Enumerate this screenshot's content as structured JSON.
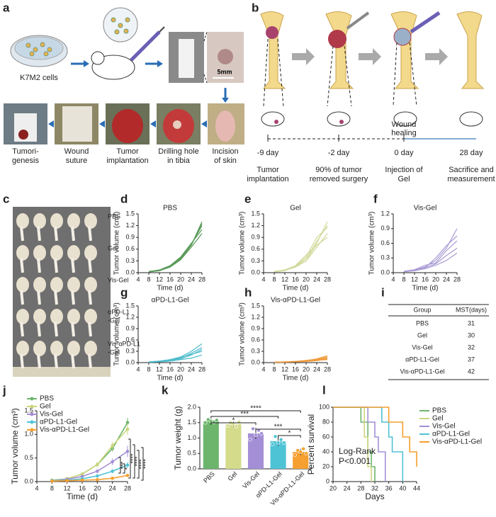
{
  "panel_labels": [
    "a",
    "b",
    "c",
    "d",
    "e",
    "f",
    "g",
    "h",
    "i",
    "j",
    "k",
    "l"
  ],
  "panel_a": {
    "cell_label": "K7M2 cells",
    "scale_bar": "5mm",
    "steps": [
      [
        "Tumori-",
        "genesis"
      ],
      [
        "Wound",
        "suture"
      ],
      [
        "Tumor",
        "implantation"
      ],
      [
        "Drilling hole",
        "in tibia"
      ],
      [
        "Incision",
        "of skin"
      ]
    ]
  },
  "panel_b": {
    "wound_healing": [
      "Wound",
      "healing"
    ],
    "days": [
      "-9 day",
      "-2 day",
      "0 day",
      "28 day"
    ],
    "steps": [
      [
        "Tumor",
        "implantation"
      ],
      [
        "90% of tumor",
        "removed surgery"
      ],
      [
        "Injection of",
        "Gel"
      ],
      [
        "Sacrifice and",
        "measurement"
      ]
    ]
  },
  "panel_c": {
    "groups": [
      [
        "PBS"
      ],
      [
        "Gel"
      ],
      [
        "Vis-Gel"
      ],
      [
        "αPD-L1",
        "-Gel"
      ],
      [
        "Vis-αPD-L1",
        "-Gel"
      ]
    ]
  },
  "table_l": {
    "header": [
      "Group",
      "MST(days)"
    ],
    "rows": [
      [
        "PBS",
        31
      ],
      [
        "Gel",
        30
      ],
      [
        "Vis-Gel",
        32
      ],
      [
        "αPD-L1-Gel",
        37
      ],
      [
        "Vis-αPD-L1-Gel",
        42
      ]
    ]
  },
  "chart_data": [
    {
      "type": "line",
      "title": "PBS",
      "x_label": "Time (d)",
      "y_label": "Tumor volume (cm³)",
      "xlim": [
        4,
        28
      ],
      "xticks": [
        4,
        8,
        12,
        16,
        20,
        24,
        28
      ],
      "ylim": [
        0,
        1.5
      ],
      "yticks": [
        {
          "value": 0,
          "label": "0.0"
        },
        0.3,
        0.6,
        0.9,
        1.2,
        1.5
      ],
      "x": [
        8,
        12,
        16,
        20,
        24,
        28
      ],
      "series": [
        {
          "color": "#5a9a5a",
          "values": [
            0.02,
            0.05,
            0.15,
            0.35,
            0.7,
            1.3
          ]
        },
        {
          "color": "#5a9a5a",
          "values": [
            0.02,
            0.06,
            0.17,
            0.38,
            0.72,
            1.2
          ]
        },
        {
          "color": "#5a9a5a",
          "values": [
            0.03,
            0.07,
            0.18,
            0.4,
            0.75,
            1.1
          ]
        },
        {
          "color": "#5a9a5a",
          "values": [
            0.02,
            0.05,
            0.14,
            0.33,
            0.65,
            1.0
          ]
        },
        {
          "color": "#5a9a5a",
          "values": [
            0.03,
            0.06,
            0.16,
            0.36,
            0.7,
            1.25
          ]
        }
      ]
    },
    {
      "type": "line",
      "title": "Gel",
      "x_label": "Time (d)",
      "y_label": "Tumor volume (cm³)",
      "xlim": [
        4,
        28
      ],
      "xticks": [
        4,
        8,
        12,
        16,
        20,
        24,
        28
      ],
      "ylim": [
        0,
        1.5
      ],
      "yticks": [
        {
          "value": 0,
          "label": "0.0"
        },
        0.3,
        0.6,
        0.9,
        1.2,
        1.5
      ],
      "x": [
        8,
        12,
        16,
        20,
        24,
        28
      ],
      "series": [
        {
          "color": "#d2d99a",
          "values": [
            0.02,
            0.05,
            0.15,
            0.3,
            0.75,
            1.3
          ]
        },
        {
          "color": "#d2d99a",
          "values": [
            0.02,
            0.06,
            0.15,
            0.35,
            0.8,
            1.2
          ]
        },
        {
          "color": "#d2d99a",
          "values": [
            0.03,
            0.06,
            0.14,
            0.3,
            0.65,
            1.0
          ]
        },
        {
          "color": "#d2d99a",
          "values": [
            0.02,
            0.05,
            0.16,
            0.4,
            0.9,
            1.15
          ]
        },
        {
          "color": "#d2d99a",
          "values": [
            0.03,
            0.07,
            0.18,
            0.45,
            0.7,
            0.9
          ]
        }
      ]
    },
    {
      "type": "line",
      "title": "Vis-Gel",
      "x_label": "Time (d)",
      "y_label": "Tumor volume (cm³)",
      "xlim": [
        4,
        28
      ],
      "xticks": [
        4,
        8,
        12,
        16,
        20,
        24,
        28
      ],
      "ylim": [
        0,
        1.2
      ],
      "yticks": [
        {
          "value": 0,
          "label": "0.0"
        },
        0.3,
        0.6,
        0.9,
        1.2
      ],
      "x": [
        8,
        12,
        16,
        20,
        24,
        28
      ],
      "series": [
        {
          "color": "#a99bd3",
          "values": [
            0.02,
            0.05,
            0.12,
            0.25,
            0.5,
            0.9
          ]
        },
        {
          "color": "#a99bd3",
          "values": [
            0.02,
            0.04,
            0.1,
            0.3,
            0.55,
            0.75
          ]
        },
        {
          "color": "#a99bd3",
          "values": [
            0.03,
            0.06,
            0.15,
            0.2,
            0.45,
            0.65
          ]
        },
        {
          "color": "#a99bd3",
          "values": [
            0.02,
            0.05,
            0.1,
            0.18,
            0.35,
            0.5
          ]
        },
        {
          "color": "#a99bd3",
          "values": [
            0.02,
            0.04,
            0.08,
            0.15,
            0.25,
            0.4
          ]
        }
      ]
    },
    {
      "type": "line",
      "title": "αPD-L1-Gel",
      "x_label": "Time (d)",
      "y_label": "Tumor volume (cm³)",
      "xlim": [
        4,
        28
      ],
      "xticks": [
        4,
        8,
        12,
        16,
        20,
        24,
        28
      ],
      "ylim": [
        0,
        1.5
      ],
      "yticks": [
        {
          "value": 0,
          "label": "0.0"
        },
        0.3,
        0.6,
        0.9,
        1.2,
        1.5
      ],
      "x": [
        8,
        12,
        16,
        20,
        24,
        28
      ],
      "series": [
        {
          "color": "#4fbccc",
          "values": [
            0.02,
            0.04,
            0.08,
            0.15,
            0.3,
            0.5
          ]
        },
        {
          "color": "#4fbccc",
          "values": [
            0.02,
            0.03,
            0.06,
            0.12,
            0.25,
            0.4
          ]
        },
        {
          "color": "#4fbccc",
          "values": [
            0.01,
            0.03,
            0.05,
            0.1,
            0.2,
            0.35
          ]
        },
        {
          "color": "#4fbccc",
          "values": [
            0.02,
            0.04,
            0.07,
            0.14,
            0.22,
            0.3
          ]
        },
        {
          "color": "#4fbccc",
          "values": [
            0.01,
            0.02,
            0.04,
            0.08,
            0.12,
            0.2
          ]
        }
      ]
    },
    {
      "type": "line",
      "title": "Vis-αPD-L1-Gel",
      "x_label": "Time (d)",
      "y_label": "Tumor volume (cm³)",
      "xlim": [
        4,
        28
      ],
      "xticks": [
        4,
        8,
        12,
        16,
        20,
        24,
        28
      ],
      "ylim": [
        0,
        1.5
      ],
      "yticks": [
        {
          "value": 0,
          "label": "0.0"
        },
        0.3,
        0.6,
        0.9,
        1.2,
        1.5
      ],
      "x": [
        8,
        12,
        16,
        20,
        24,
        28
      ],
      "series": [
        {
          "color": "#f09a3a",
          "values": [
            0.01,
            0.02,
            0.03,
            0.05,
            0.1,
            0.18
          ]
        },
        {
          "color": "#f09a3a",
          "values": [
            0.01,
            0.02,
            0.03,
            0.06,
            0.09,
            0.15
          ]
        },
        {
          "color": "#f09a3a",
          "values": [
            0.01,
            0.02,
            0.02,
            0.04,
            0.07,
            0.12
          ]
        },
        {
          "color": "#f09a3a",
          "values": [
            0.01,
            0.01,
            0.02,
            0.03,
            0.05,
            0.1
          ]
        },
        {
          "color": "#f09a3a",
          "values": [
            0.01,
            0.02,
            0.03,
            0.04,
            0.06,
            0.08
          ]
        }
      ]
    },
    {
      "type": "line",
      "x_label": "Time (d)",
      "y_label": "Tumor volume (cm³)",
      "xlim": [
        4,
        28
      ],
      "xticks": [
        4,
        8,
        12,
        16,
        20,
        24,
        28
      ],
      "ylim": [
        0,
        1.5
      ],
      "yticks": [
        {
          "value": 0,
          "label": "0.0"
        },
        0.5,
        {
          "value": 1,
          "label": "1.0"
        },
        1.5
      ],
      "x": [
        8,
        12,
        16,
        20,
        24,
        28
      ],
      "markers": true,
      "series": [
        {
          "name": "PBS",
          "color": "#6db56d",
          "values": [
            0.03,
            0.06,
            0.16,
            0.36,
            0.7,
            1.25
          ],
          "errors": [
            0.01,
            0.01,
            0.02,
            0.04,
            0.06,
            0.1
          ]
        },
        {
          "name": "Gel",
          "color": "#cbd67e",
          "values": [
            0.03,
            0.06,
            0.16,
            0.36,
            0.76,
            1.11
          ],
          "errors": [
            0.01,
            0.01,
            0.02,
            0.05,
            0.08,
            0.12
          ]
        },
        {
          "name": "Vis-Gel",
          "color": "#a48fd6",
          "values": [
            0.02,
            0.05,
            0.11,
            0.22,
            0.42,
            0.64
          ],
          "errors": [
            0.01,
            0.01,
            0.02,
            0.04,
            0.07,
            0.12
          ]
        },
        {
          "name": "αPD-L1-Gel",
          "color": "#4fc3d6",
          "values": [
            0.02,
            0.03,
            0.06,
            0.12,
            0.22,
            0.35
          ],
          "errors": [
            0.01,
            0.01,
            0.01,
            0.02,
            0.04,
            0.06
          ]
        },
        {
          "name": "Vis-αPD-L1-Gel",
          "color": "#f5a030",
          "values": [
            0.01,
            0.02,
            0.03,
            0.04,
            0.07,
            0.13
          ],
          "errors": [
            0.005,
            0.005,
            0.01,
            0.01,
            0.02,
            0.03
          ]
        }
      ],
      "annotations": [
        "****",
        "****",
        "****",
        "****",
        "***",
        "*"
      ]
    },
    {
      "type": "bar",
      "y_label": "Tumor weight (g)",
      "categories": [
        "PBS",
        "Gel",
        "Vis-Gel",
        "αPD-L1-Gel",
        "Vis-αPD-L1-Gel"
      ],
      "values": [
        1.55,
        1.45,
        1.15,
        0.9,
        0.55
      ],
      "errors": [
        0.06,
        0.08,
        0.18,
        0.15,
        0.1
      ],
      "colors": [
        "#6db56d",
        "#d4dc8c",
        "#a48fd6",
        "#4fc3d6",
        "#f5a030"
      ],
      "points": [
        [
          1.5,
          1.6,
          1.55,
          1.52,
          1.58
        ],
        [
          1.4,
          1.5,
          1.45,
          1.38,
          1.52
        ],
        [
          0.95,
          1.3,
          1.1,
          1.25,
          1.15
        ],
        [
          0.8,
          1.05,
          0.85,
          0.95,
          0.85
        ],
        [
          0.45,
          0.6,
          0.55,
          0.65,
          0.5
        ]
      ],
      "ylim": [
        0,
        2
      ],
      "yticks": [
        {
          "value": 0,
          "label": "0.0"
        },
        0.5,
        {
          "value": 1,
          "label": "1.0"
        },
        1.5,
        {
          "value": 2,
          "label": "2.0"
        }
      ],
      "annotations": [
        "****",
        "***",
        "*",
        "***",
        "*"
      ]
    },
    {
      "type": "line",
      "x_label": "Days",
      "y_label": "Percent survival",
      "xlim": [
        20,
        44
      ],
      "xticks": [
        20,
        24,
        28,
        32,
        36,
        40,
        44
      ],
      "ylim": [
        0,
        100
      ],
      "yticks": [
        0,
        20,
        40,
        60,
        80,
        100
      ],
      "series": [
        {
          "name": "PBS",
          "color": "#6db56d",
          "x": [
            20,
            28,
            28,
            30,
            30,
            31,
            31,
            32,
            32
          ],
          "values": [
            100,
            100,
            80,
            80,
            40,
            40,
            20,
            20,
            0
          ]
        },
        {
          "name": "Gel",
          "color": "#cbd67e",
          "x": [
            20,
            29,
            29,
            30,
            30,
            31,
            31
          ],
          "values": [
            100,
            100,
            60,
            60,
            20,
            20,
            0
          ]
        },
        {
          "name": "Vis-Gel",
          "color": "#a48fd6",
          "x": [
            20,
            30,
            30,
            32,
            32,
            33,
            33,
            35,
            35
          ],
          "values": [
            100,
            100,
            80,
            80,
            60,
            60,
            40,
            40,
            0
          ]
        },
        {
          "name": "αPD-L1-Gel",
          "color": "#4fc3d6",
          "x": [
            20,
            34,
            34,
            36,
            36,
            37,
            37,
            40,
            40
          ],
          "values": [
            100,
            100,
            80,
            80,
            60,
            60,
            40,
            40,
            0
          ]
        },
        {
          "name": "Vis-αPD-L1-Gel",
          "color": "#f5a030",
          "x": [
            20,
            36,
            36,
            40,
            40,
            42,
            42,
            44,
            44
          ],
          "values": [
            100,
            100,
            80,
            80,
            60,
            60,
            40,
            40,
            20
          ]
        }
      ],
      "annotations": [
        "Log-Rank",
        "P<0.001"
      ]
    }
  ]
}
